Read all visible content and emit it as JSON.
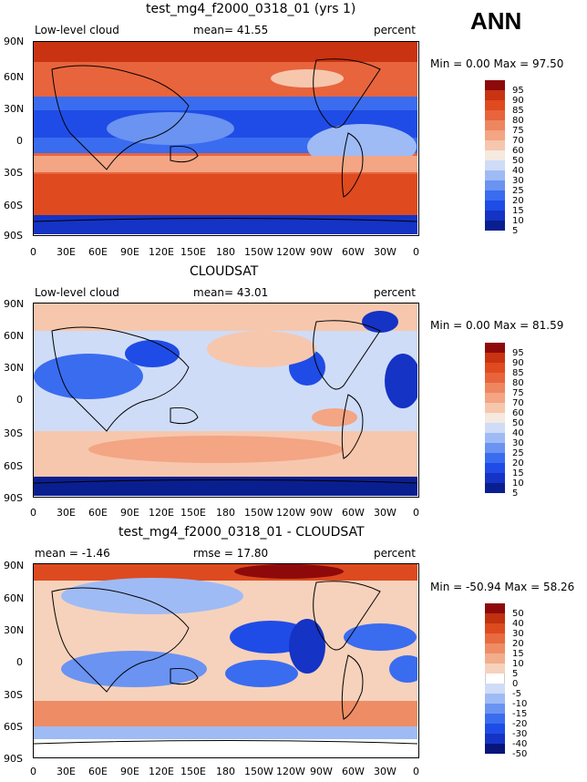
{
  "season": "ANN",
  "lat_ticks": [
    "90N",
    "60N",
    "30N",
    "0",
    "30S",
    "60S",
    "90S"
  ],
  "lon_ticks": [
    "0",
    "30E",
    "60E",
    "90E",
    "120E",
    "150E",
    "180",
    "150W",
    "120W",
    "90W",
    "60W",
    "30W",
    "0"
  ],
  "panels": [
    {
      "title": "test_mg4_f2000_0318_01 (yrs 1)",
      "left_label": "Low-level cloud",
      "center_label": "mean=  41.55",
      "right_label": "percent",
      "minmax": "Min =    0.00 Max =   97.50",
      "colorbar": [
        "95",
        "90",
        "85",
        "80",
        "75",
        "70",
        "60",
        "50",
        "40",
        "30",
        "25",
        "20",
        "15",
        "10",
        "5"
      ]
    },
    {
      "title": "CLOUDSAT",
      "left_label": "Low-level cloud",
      "center_label": "mean=  43.01",
      "right_label": "percent",
      "minmax": "Min =    0.00 Max =   81.59",
      "colorbar": [
        "95",
        "90",
        "85",
        "80",
        "75",
        "70",
        "60",
        "50",
        "40",
        "30",
        "25",
        "20",
        "15",
        "10",
        "5"
      ]
    },
    {
      "title": "test_mg4_f2000_0318_01 - CLOUDSAT",
      "left_label": "mean =  -1.46",
      "center_label": "rmse =  17.80",
      "right_label": "percent",
      "minmax": "Min = -50.94 Max =  58.26",
      "colorbar": [
        "50",
        "40",
        "30",
        "20",
        "15",
        "10",
        "5",
        "0",
        "-5",
        "-10",
        "-15",
        "-20",
        "-30",
        "-40",
        "-50"
      ]
    }
  ],
  "colors": {
    "abs_scale": [
      "#0a1f8f",
      "#1533c4",
      "#1f4ce6",
      "#3a6cf0",
      "#6a93f2",
      "#9fbbf5",
      "#cfdcf7",
      "#f5e9e0",
      "#f6c7ad",
      "#f3a584",
      "#ee8660",
      "#e8643c",
      "#e04a1f",
      "#c93311",
      "#8e0a0a"
    ],
    "diff_scale": [
      "#08157a",
      "#1533c4",
      "#1f4ce6",
      "#3a6cf0",
      "#6a93f2",
      "#9fbbf5",
      "#cfdcf7",
      "#ffffff",
      "#f6d2bc",
      "#f3ad8c",
      "#ee8d65",
      "#e86a40",
      "#dd4a1f",
      "#c0310f",
      "#8e0a0a"
    ],
    "land_line": "#000000"
  }
}
